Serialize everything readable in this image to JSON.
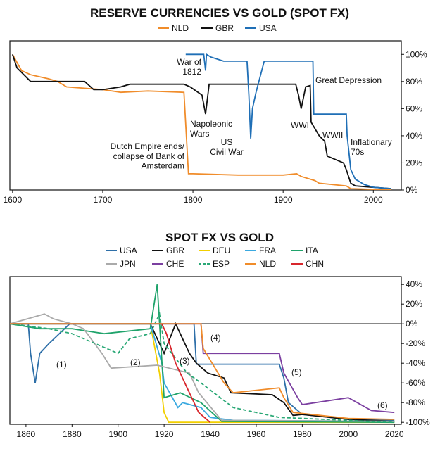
{
  "chart_data": [
    {
      "type": "line",
      "title": "RESERVE CURRENCIES VS GOLD (SPOT FX)",
      "xlim": [
        1597,
        2031
      ],
      "xticks": [
        1600,
        1700,
        1800,
        1900,
        2000
      ],
      "ylim": [
        0,
        110
      ],
      "yticks": [
        {
          "value": 0,
          "label": "0%"
        },
        {
          "value": 20,
          "label": "20%"
        },
        {
          "value": 40,
          "label": "40%"
        },
        {
          "value": 60,
          "label": "60%"
        },
        {
          "value": 80,
          "label": "80%"
        },
        {
          "value": 100,
          "label": "100%"
        }
      ],
      "series": [
        {
          "name": "NLD",
          "color": "#f08c2a",
          "x": [
            1600,
            1610,
            1620,
            1640,
            1650,
            1660,
            1700,
            1720,
            1750,
            1790,
            1795,
            1800,
            1850,
            1900,
            1915,
            1920,
            1935,
            1940,
            1970,
            1975,
            2020
          ],
          "values": [
            100,
            88,
            85,
            82,
            80,
            76,
            74,
            72,
            73,
            72,
            12,
            12,
            11,
            11,
            12,
            10,
            7,
            5,
            3,
            1,
            0
          ]
        },
        {
          "name": "GBR",
          "color": "#111111",
          "x": [
            1600,
            1605,
            1620,
            1680,
            1690,
            1700,
            1720,
            1730,
            1790,
            1797,
            1810,
            1814,
            1818,
            1900,
            1914,
            1917,
            1920,
            1925,
            1930,
            1931,
            1940,
            1946,
            1949,
            1967,
            1970,
            1975,
            1980,
            2020
          ],
          "values": [
            100,
            90,
            80,
            80,
            74,
            74,
            76,
            78,
            78,
            76,
            70,
            56,
            78,
            78,
            78,
            70,
            60,
            76,
            77,
            50,
            40,
            36,
            25,
            20,
            15,
            5,
            3,
            1
          ]
        },
        {
          "name": "USA",
          "color": "#1f6fb6",
          "x": [
            1792,
            1812,
            1814,
            1815,
            1820,
            1834,
            1860,
            1862,
            1864,
            1866,
            1870,
            1879,
            1900,
            1933,
            1934,
            1944,
            1950,
            1970,
            1971,
            1975,
            1980,
            1990,
            2000,
            2020
          ],
          "values": [
            100,
            100,
            88,
            100,
            98,
            95,
            95,
            70,
            38,
            60,
            72,
            95,
            95,
            95,
            56,
            56,
            56,
            56,
            40,
            15,
            8,
            4,
            2,
            1
          ]
        }
      ],
      "annotations": [
        "War of\n1812",
        "Napoleonic\nWars",
        "US\nCivil War",
        "WWI",
        "WWII",
        "Great Depression",
        "Inflationary\n70s",
        "Dutch Empire ends/\ncollapse of Bank of\nAmsterdam"
      ]
    },
    {
      "type": "line",
      "title": "SPOT FX VS GOLD",
      "xlim": [
        1853,
        2023
      ],
      "xticks": [
        1860,
        1880,
        1900,
        1920,
        1940,
        1960,
        1980,
        2000,
        2020
      ],
      "ylim": [
        -102,
        48
      ],
      "yticks": [
        {
          "value": -100,
          "label": "-100%"
        },
        {
          "value": -80,
          "label": "-80%"
        },
        {
          "value": -60,
          "label": "-60%"
        },
        {
          "value": -40,
          "label": "-40%"
        },
        {
          "value": -20,
          "label": "-20%"
        },
        {
          "value": 0,
          "label": "0%"
        },
        {
          "value": 20,
          "label": "20%"
        },
        {
          "value": 40,
          "label": "40%"
        }
      ],
      "series": [
        {
          "name": "USA",
          "color": "#2e6fa8",
          "x": [
            1853,
            1861,
            1862,
            1864,
            1866,
            1870,
            1879,
            1933,
            1934,
            1970,
            1972,
            1974,
            1980,
            2000,
            2020
          ],
          "values": [
            0,
            0,
            -30,
            -60,
            -30,
            -20,
            0,
            0,
            -41,
            -41,
            -55,
            -80,
            -92,
            -97,
            -98
          ]
        },
        {
          "name": "GBR",
          "color": "#111111",
          "x": [
            1853,
            1914,
            1920,
            1925,
            1931,
            1934,
            1939,
            1946,
            1949,
            1967,
            1972,
            1976,
            1980,
            2000,
            2020
          ],
          "values": [
            0,
            0,
            -30,
            0,
            -30,
            -40,
            -50,
            -55,
            -70,
            -72,
            -80,
            -93,
            -92,
            -97,
            -99
          ]
        },
        {
          "name": "DEU",
          "color": "#f2cf00",
          "x": [
            1853,
            1914,
            1918,
            1920,
            1922,
            2020
          ],
          "values": [
            0,
            0,
            -50,
            -90,
            -100,
            -100
          ]
        },
        {
          "name": "FRA",
          "color": "#3aa9e0",
          "x": [
            1853,
            1914,
            1919,
            1920,
            1926,
            1928,
            1936,
            1940,
            1950,
            2020
          ],
          "values": [
            0,
            0,
            -40,
            -60,
            -85,
            -80,
            -85,
            -95,
            -98,
            -99
          ]
        },
        {
          "name": "ITA",
          "color": "#1fa36b",
          "x": [
            1853,
            1866,
            1880,
            1894,
            1914,
            1917,
            1920,
            1927,
            1936,
            1945,
            2020
          ],
          "values": [
            0,
            -5,
            -5,
            -10,
            -5,
            40,
            -75,
            -70,
            -80,
            -99,
            -100
          ]
        },
        {
          "name": "JPN",
          "color": "#aaaaaa",
          "x": [
            1853,
            1868,
            1872,
            1880,
            1885,
            1893,
            1897,
            1917,
            1931,
            1935,
            1945,
            2020
          ],
          "values": [
            0,
            10,
            5,
            0,
            -5,
            -30,
            -45,
            -42,
            -50,
            -70,
            -98,
            -99
          ]
        },
        {
          "name": "CHE",
          "color": "#7b3fa0",
          "x": [
            1853,
            1936,
            1937,
            1970,
            1972,
            1978,
            1980,
            2000,
            2010,
            2020
          ],
          "values": [
            0,
            0,
            -30,
            -30,
            -50,
            -75,
            -82,
            -75,
            -88,
            -90
          ]
        },
        {
          "name": "ESP",
          "color": "#2aa876",
          "dash": true,
          "x": [
            1853,
            1870,
            1880,
            1900,
            1905,
            1914,
            1918,
            1920,
            1930,
            1936,
            1950,
            1970,
            2020
          ],
          "values": [
            0,
            -5,
            -10,
            -30,
            -15,
            -10,
            10,
            -20,
            -50,
            -60,
            -85,
            -95,
            -100
          ]
        },
        {
          "name": "NLD",
          "color": "#f08c2a",
          "x": [
            1853,
            1936,
            1937,
            1946,
            1950,
            1970,
            1972,
            1976,
            2000,
            2020
          ],
          "values": [
            0,
            0,
            -25,
            -60,
            -70,
            -65,
            -75,
            -90,
            -96,
            -97
          ]
        },
        {
          "name": "CHN",
          "color": "#d8262c",
          "x": [
            1919,
            1921,
            1925,
            1930,
            1935,
            1940
          ],
          "values": [
            0,
            -10,
            -40,
            -65,
            -90,
            -100
          ]
        }
      ],
      "annotations": [
        "(1)",
        "(2)",
        "(3)",
        "(4)",
        "(5)",
        "(6)"
      ]
    }
  ]
}
